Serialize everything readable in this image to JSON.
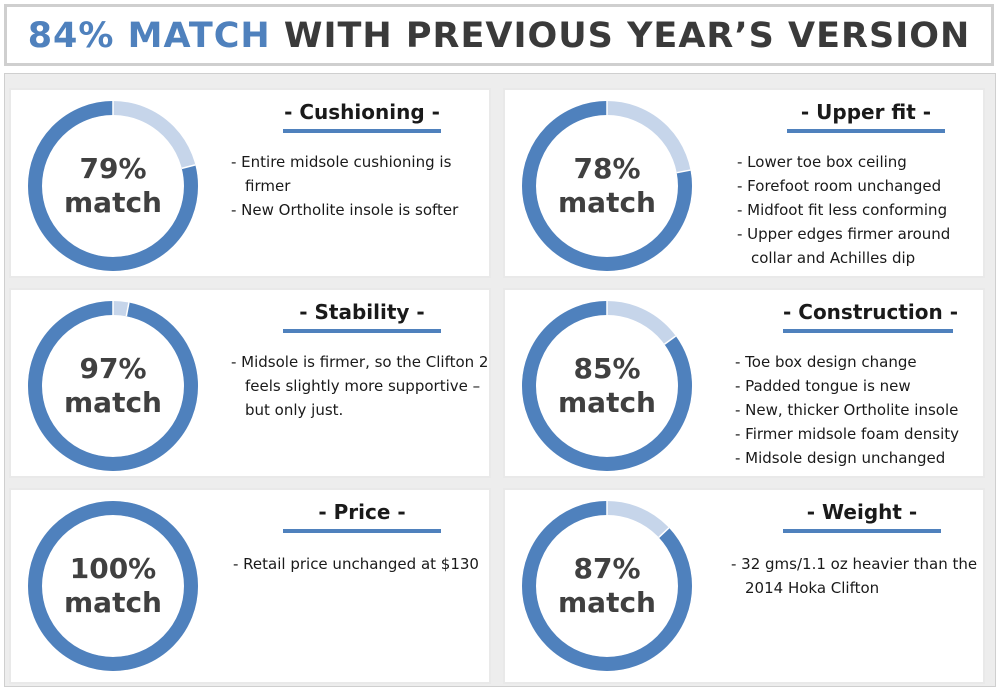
{
  "title": {
    "accent": "84% MATCH",
    "rest": "WITH PREVIOUS YEAR’S VERSION"
  },
  "colors": {
    "ring_filled": "#4f81bd",
    "ring_remainder": "#c6d5ea",
    "heading_underline": "#4f81bd"
  },
  "chart_data": [
    {
      "type": "pie",
      "heading": "- Cushioning -",
      "value": 79,
      "center_line1": "79%",
      "center_line2": "match",
      "bullets": [
        "- Entire midsole cushioning is firmer",
        "- New Ortholite insole is softer"
      ]
    },
    {
      "type": "pie",
      "heading": "- Upper fit -",
      "value": 78,
      "center_line1": "78%",
      "center_line2": "match",
      "bullets": [
        "- Lower toe box ceiling",
        "- Forefoot room unchanged",
        "- Midfoot fit less conforming",
        "- Upper edges firmer around collar and Achilles dip"
      ]
    },
    {
      "type": "pie",
      "heading": "- Stability -",
      "value": 97,
      "center_line1": "97%",
      "center_line2": "match",
      "bullets": [
        "- Midsole is firmer, so the Clifton 2 feels slightly more supportive – but only just."
      ]
    },
    {
      "type": "pie",
      "heading": "- Construction -",
      "value": 85,
      "center_line1": "85%",
      "center_line2": "match",
      "bullets": [
        "- Toe box design change",
        "- Padded tongue is new",
        "- New, thicker Ortholite insole",
        "- Firmer midsole foam density",
        "- Midsole design unchanged"
      ]
    },
    {
      "type": "pie",
      "heading": "- Price -",
      "value": 100,
      "center_line1": "100%",
      "center_line2": "match",
      "bullets": [
        "-  Retail price unchanged at $130"
      ]
    },
    {
      "type": "pie",
      "heading": "- Weight -",
      "value": 87,
      "center_line1": "87%",
      "center_line2": "match",
      "bullets": [
        "- 32 gms/1.1 oz heavier than the 2014 Hoka Clifton"
      ]
    }
  ]
}
